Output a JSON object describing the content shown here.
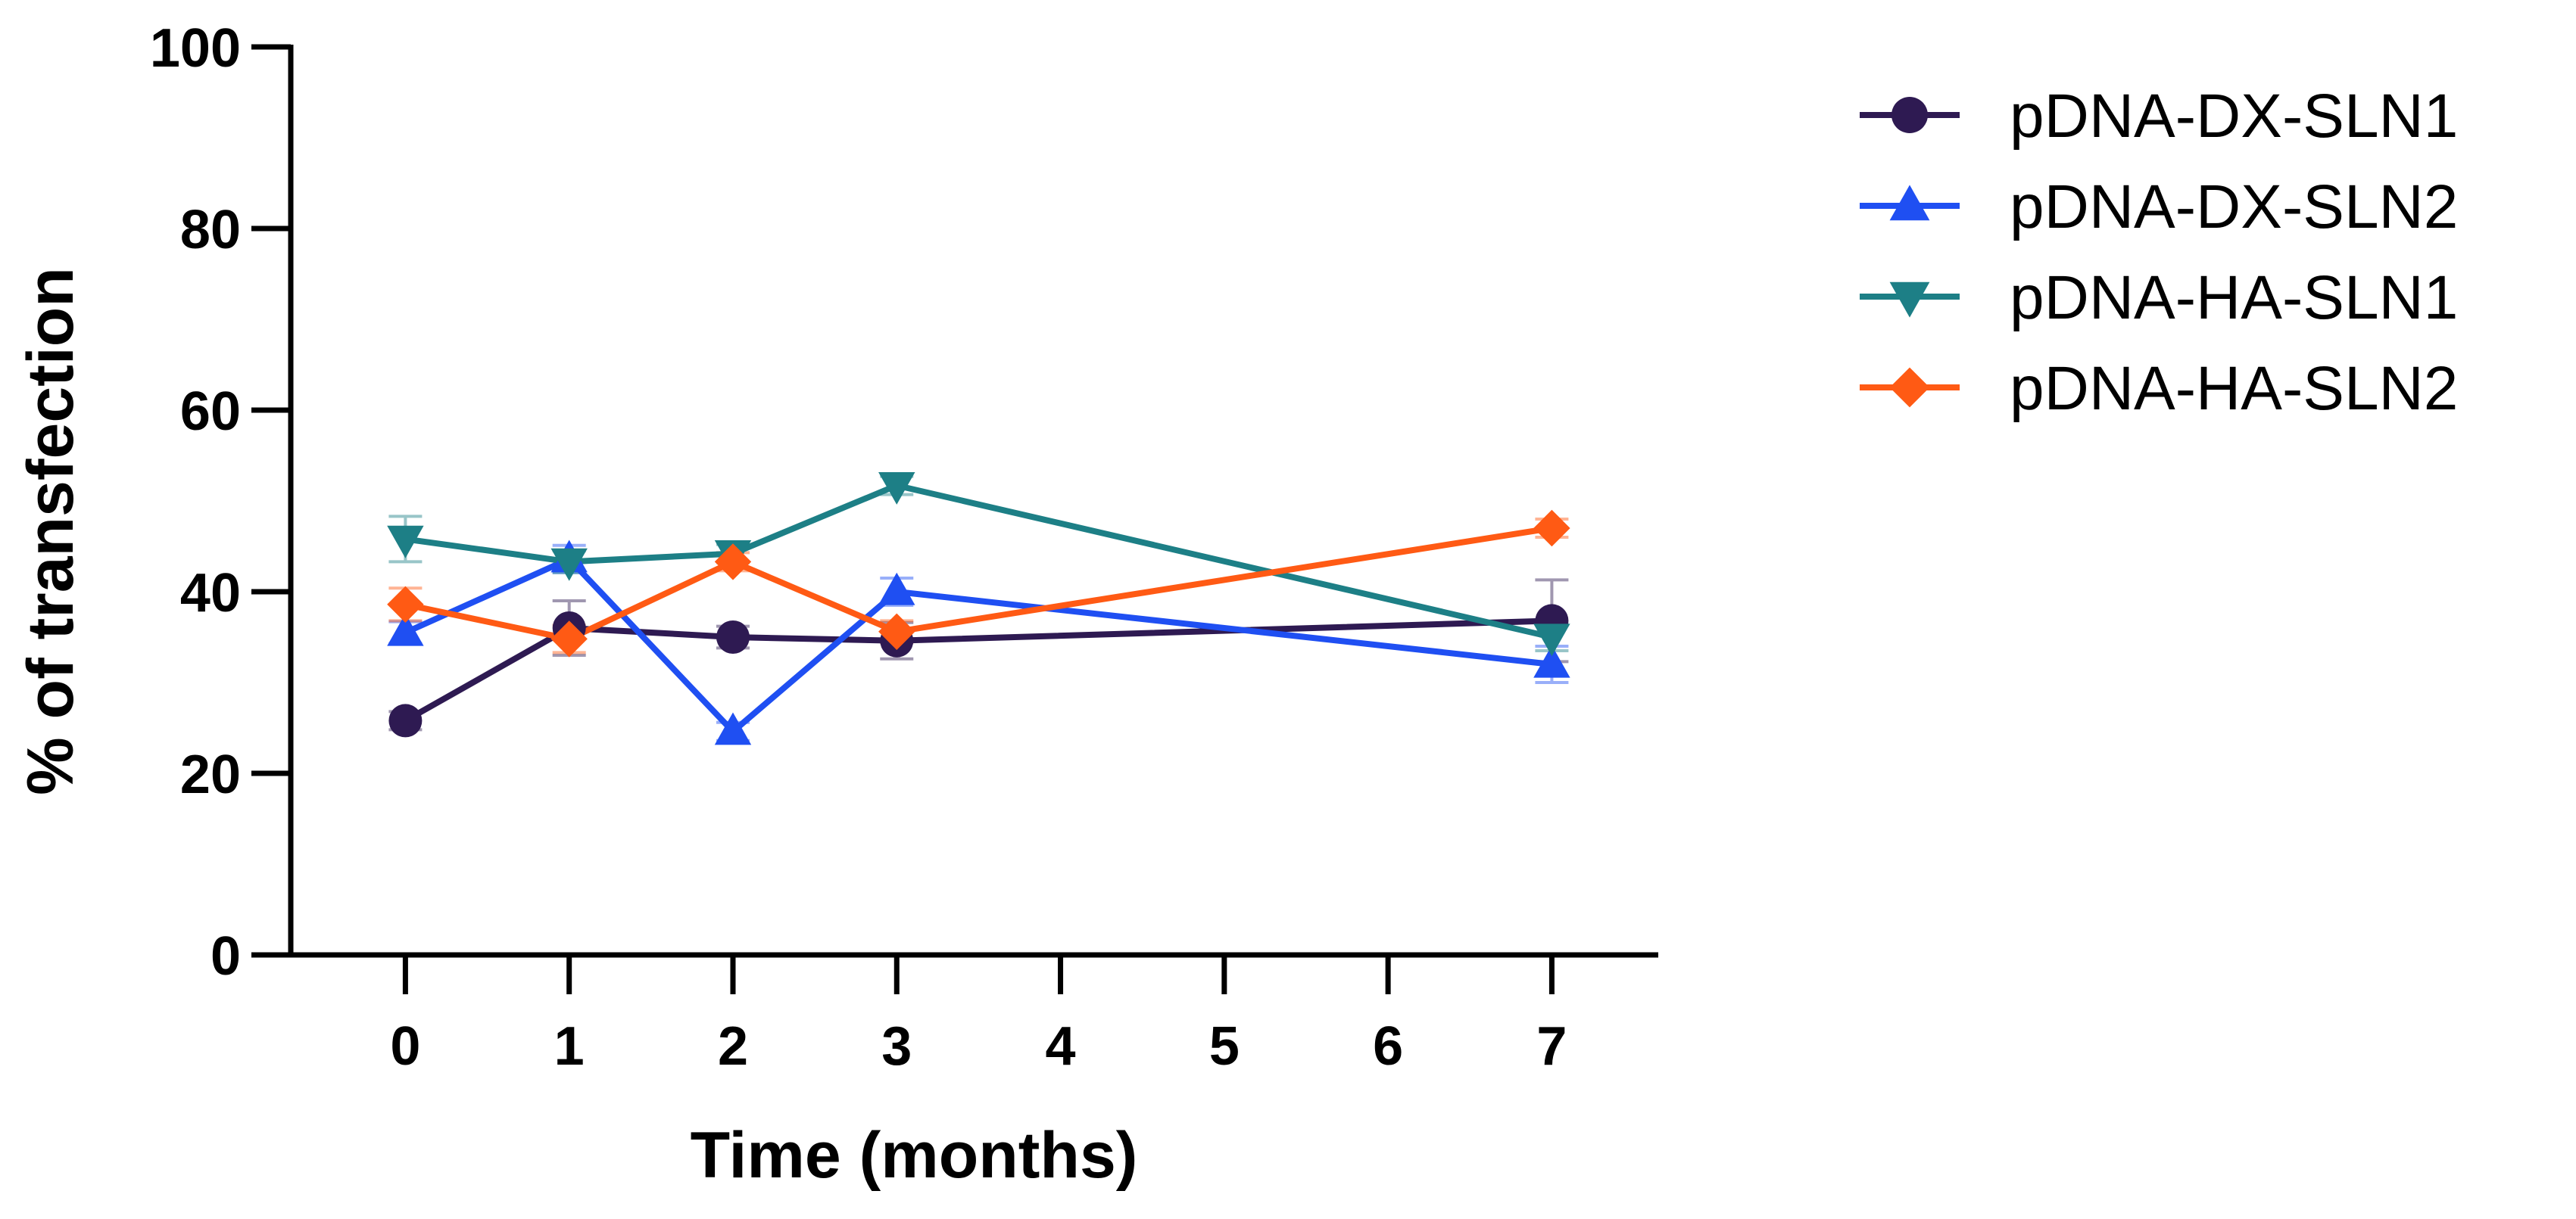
{
  "chart_data": {
    "type": "line",
    "title": "",
    "xlabel": "Time (months)",
    "ylabel": "% of transfection",
    "xlim": [
      -0.7,
      7.65
    ],
    "ylim": [
      0,
      100
    ],
    "xticks": [
      0,
      1,
      2,
      3,
      4,
      5,
      6,
      7
    ],
    "yticks": [
      0,
      20,
      40,
      60,
      80,
      100
    ],
    "legend_position": "right",
    "series": [
      {
        "name": "pDNA-DX-SLN1",
        "color": "#2e1a52",
        "marker": "circle",
        "x": [
          0,
          1,
          2,
          3,
          7
        ],
        "y": [
          25.8,
          36.0,
          35.0,
          34.6,
          36.8
        ],
        "err": [
          1.0,
          3.0,
          1.2,
          2.0,
          4.5
        ]
      },
      {
        "name": "pDNA-DX-SLN2",
        "color": "#1f4ff2",
        "marker": "triangle-up",
        "x": [
          0,
          1,
          2,
          3,
          7
        ],
        "y": [
          35.5,
          43.6,
          24.6,
          40.0,
          32.0
        ],
        "err": [
          1.2,
          1.5,
          1.0,
          1.5,
          2.0
        ]
      },
      {
        "name": "pDNA-HA-SLN1",
        "color": "#1d7f86",
        "marker": "triangle-down",
        "x": [
          0,
          1,
          2,
          3,
          7
        ],
        "y": [
          45.8,
          43.3,
          44.2,
          51.7,
          35.0
        ],
        "err": [
          2.5,
          1.2,
          1.0,
          1.0,
          1.5
        ]
      },
      {
        "name": "pDNA-HA-SLN2",
        "color": "#ff5a14",
        "marker": "diamond",
        "x": [
          0,
          1,
          2,
          3,
          7
        ],
        "y": [
          38.6,
          34.8,
          43.3,
          35.6,
          47.0
        ],
        "err": [
          1.8,
          1.5,
          1.0,
          1.2,
          1.0
        ]
      }
    ]
  }
}
